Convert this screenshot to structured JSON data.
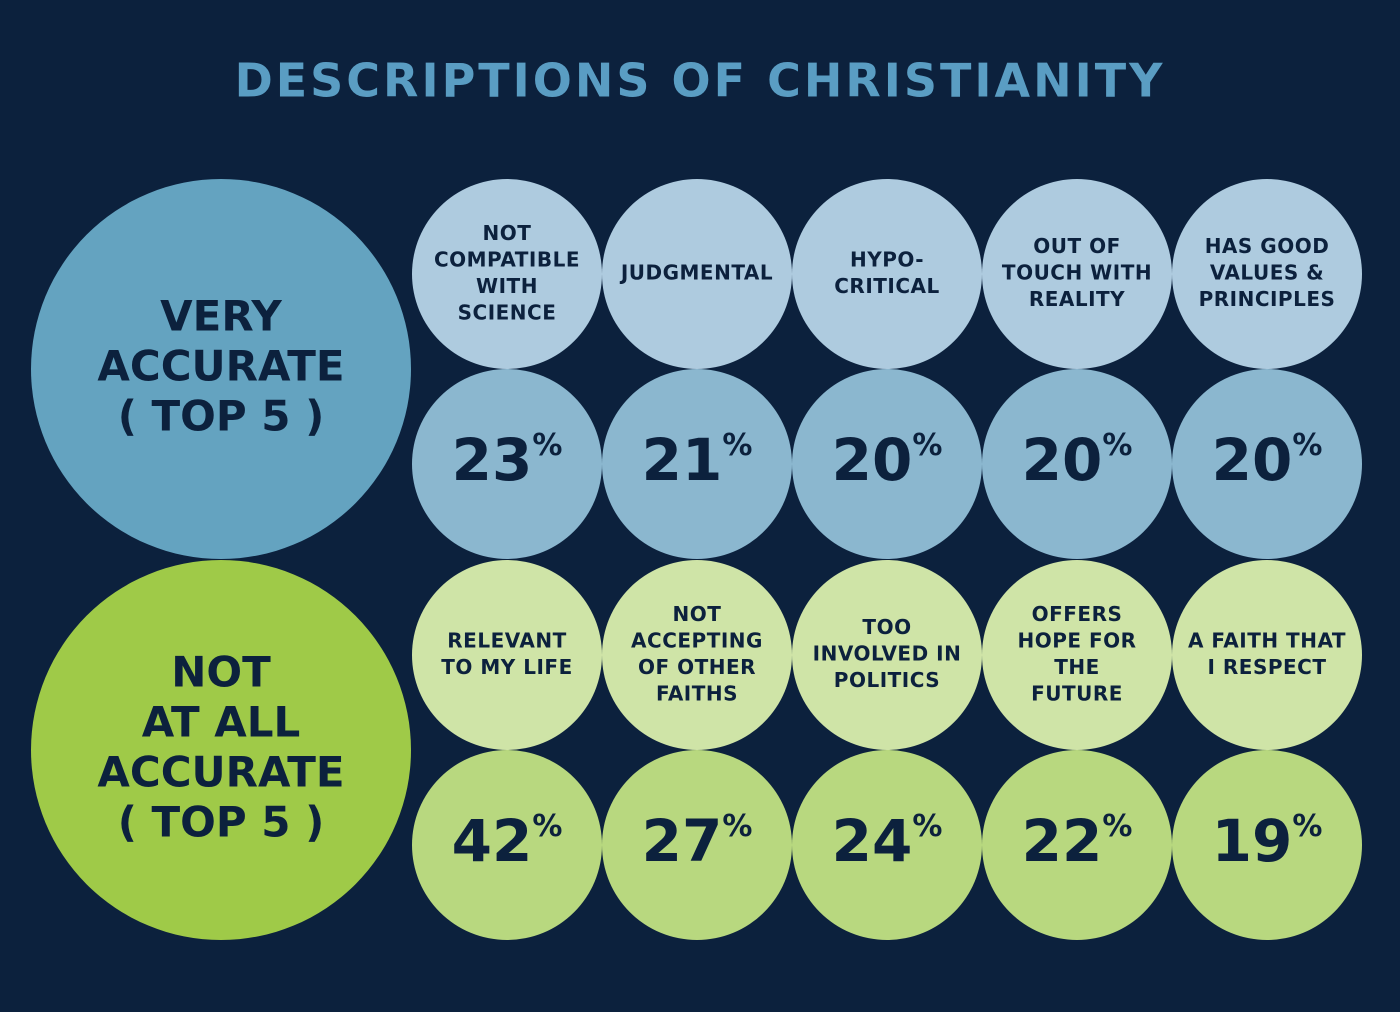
{
  "title": "DESCRIPTIONS OF CHRISTIANITY",
  "unit": "%",
  "groups": [
    {
      "heading": [
        "VERY",
        "ACCURATE",
        "( TOP 5 )"
      ],
      "items": [
        {
          "label": [
            "NOT",
            "COMPATIBLE",
            "WITH",
            "SCIENCE"
          ],
          "value": 23
        },
        {
          "label": [
            "JUDGMENTAL"
          ],
          "value": 21
        },
        {
          "label": [
            "HYPO-",
            "CRITICAL"
          ],
          "value": 20
        },
        {
          "label": [
            "OUT OF",
            "TOUCH WITH",
            "REALITY"
          ],
          "value": 20
        },
        {
          "label": [
            "HAS GOOD",
            "VALUES &",
            "PRINCIPLES"
          ],
          "value": 20
        }
      ]
    },
    {
      "heading": [
        "NOT",
        "AT ALL",
        "ACCURATE",
        "( TOP 5 )"
      ],
      "items": [
        {
          "label": [
            "RELEVANT",
            "TO MY LIFE"
          ],
          "value": 42
        },
        {
          "label": [
            "NOT",
            "ACCEPTING",
            "OF OTHER",
            "FAITHS"
          ],
          "value": 27
        },
        {
          "label": [
            "TOO",
            "INVOLVED IN",
            "POLITICS"
          ],
          "value": 24
        },
        {
          "label": [
            "OFFERS",
            "HOPE FOR",
            "THE",
            "FUTURE"
          ],
          "value": 22
        },
        {
          "label": [
            "A FAITH THAT",
            "I RESPECT"
          ],
          "value": 19
        }
      ]
    }
  ]
}
